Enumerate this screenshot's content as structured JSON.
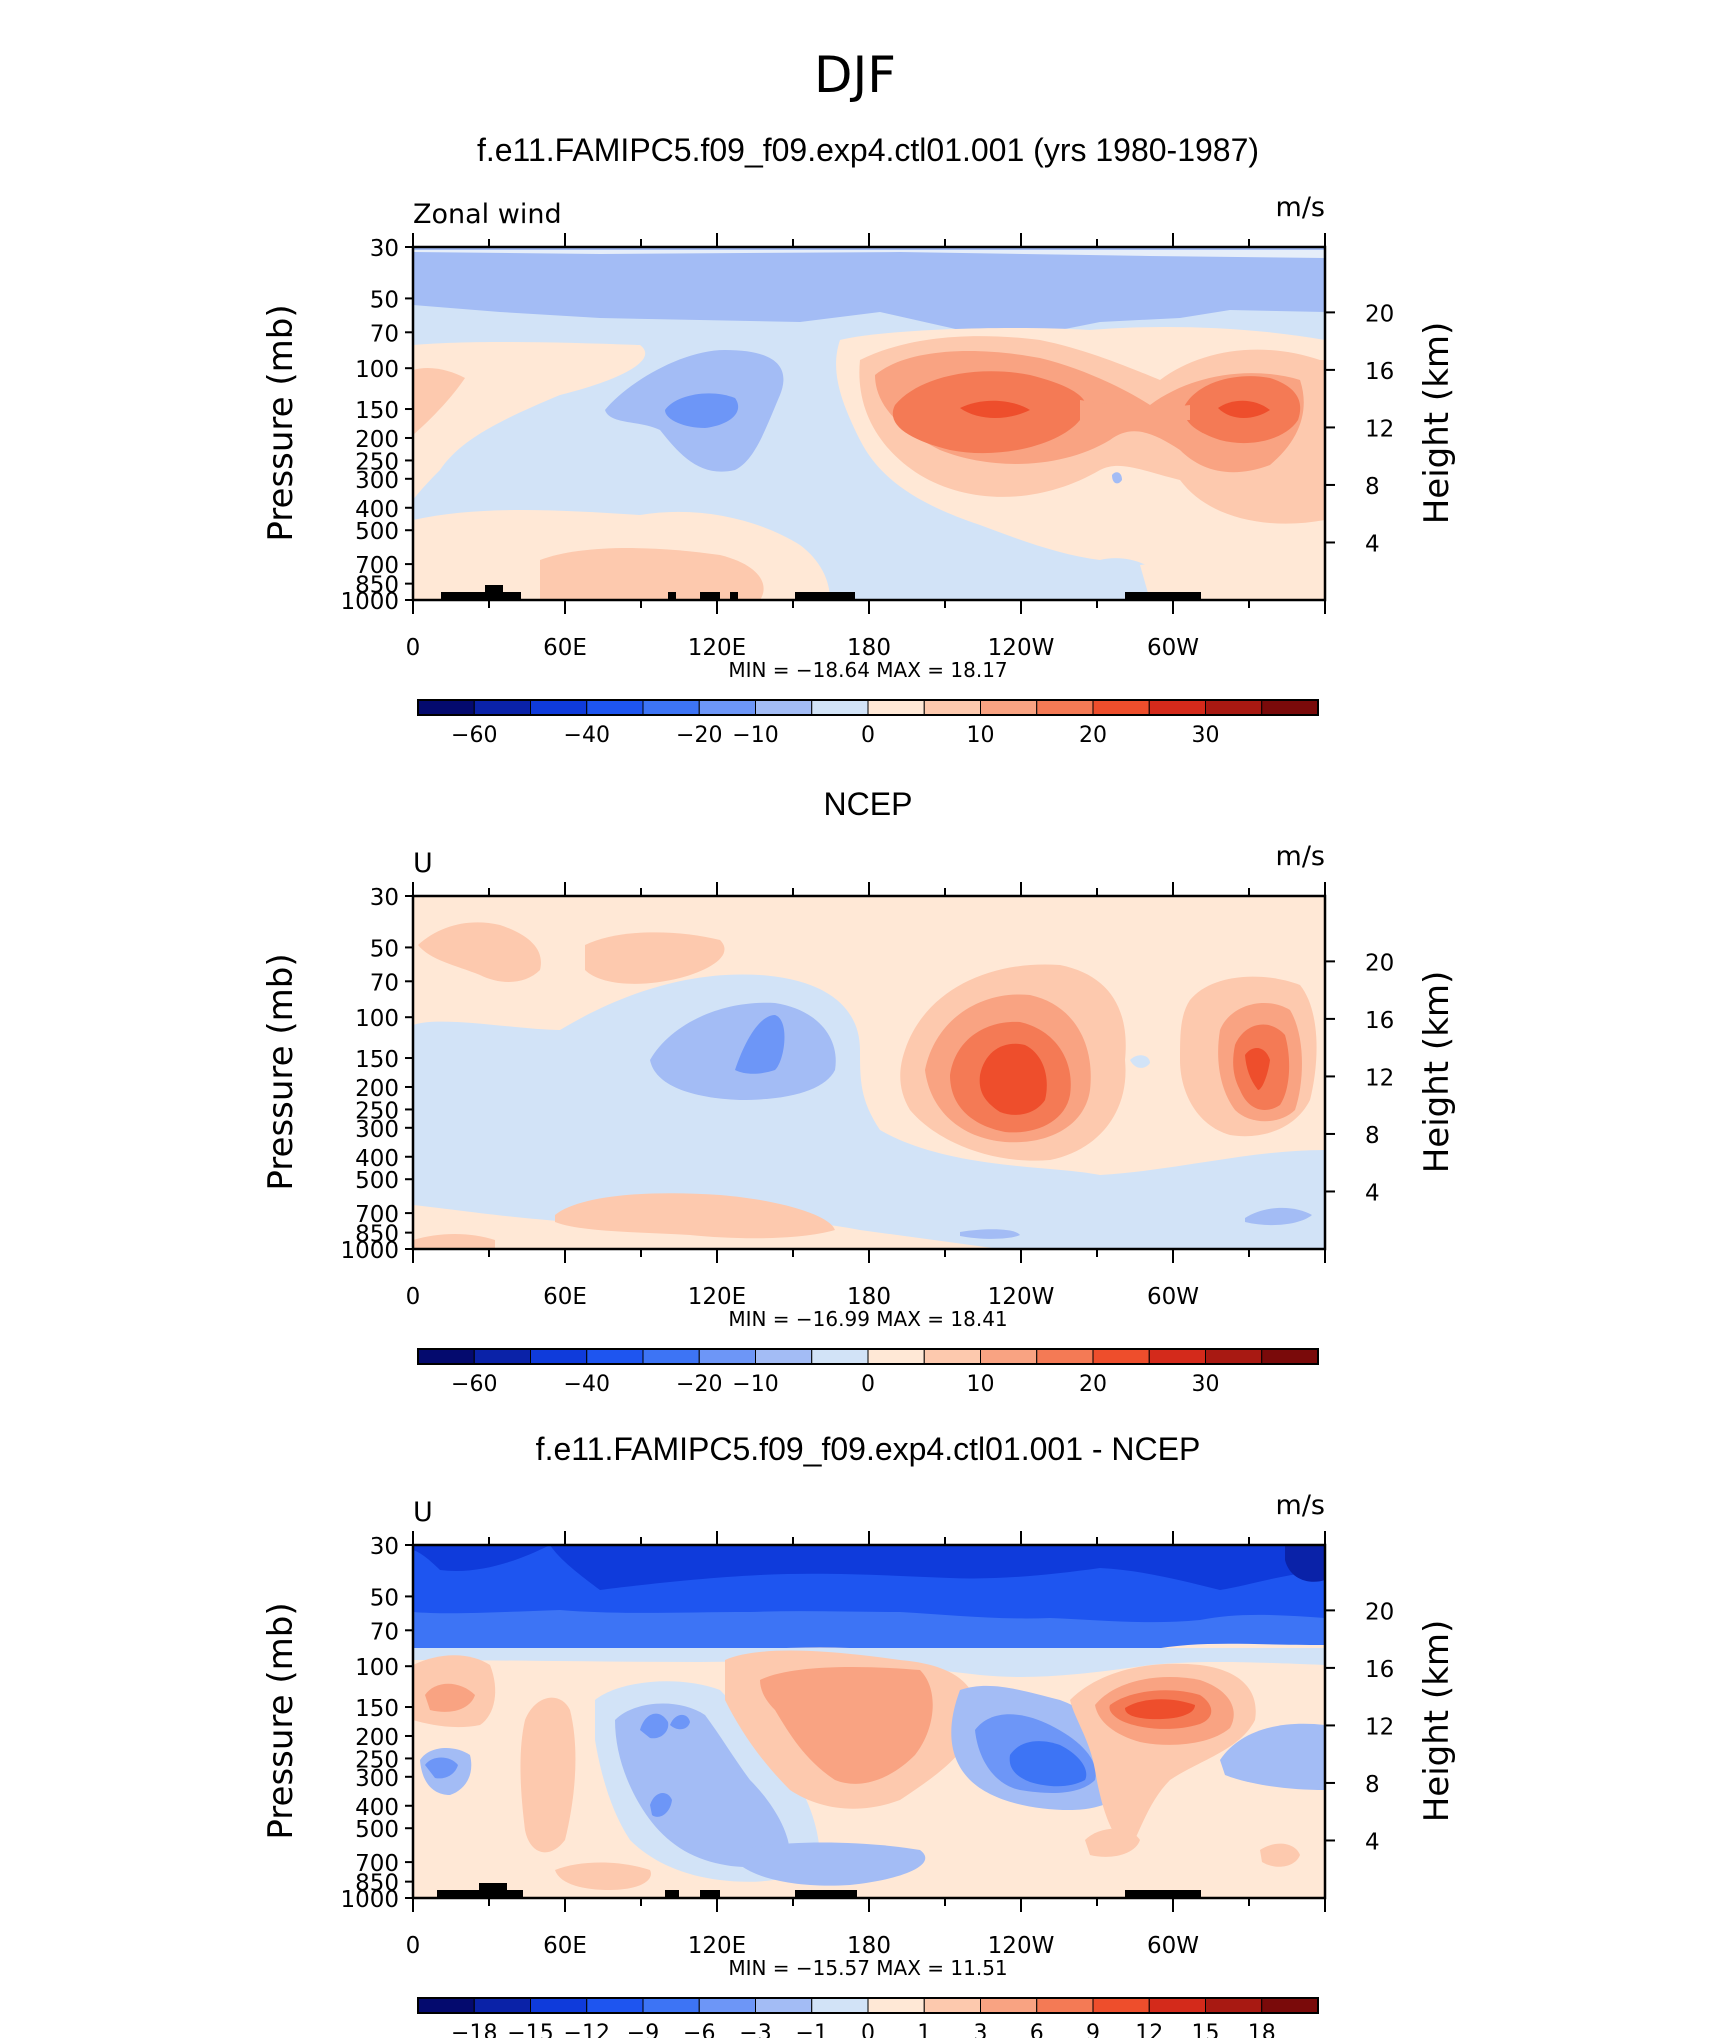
{
  "figure": {
    "title": "DJF"
  },
  "chart_data": [
    {
      "type": "heatmap",
      "title": "f.e11.FAMIPC5.f09_f09.exp4.ctl01.001 (yrs 1980-1987)",
      "left_label": "Zonal wind",
      "units": "m/s",
      "ylabel": "Pressure (mb)",
      "ylabel_right": "Height (km)",
      "y_ticks": [
        "30",
        "50",
        "70",
        "100",
        "150",
        "200",
        "250",
        "300",
        "400",
        "500",
        "700",
        "850",
        "1000"
      ],
      "height_ticks": [
        "20",
        "16",
        "12",
        "8",
        "4"
      ],
      "x_labels": [
        "0",
        "60E",
        "120E",
        "180",
        "120W",
        "60W"
      ],
      "stats": "MIN = −18.64   MAX =   18.17",
      "min": -18.64,
      "max": 18.17,
      "colorbar_labels": [
        "−60",
        "−40",
        "−20",
        "−10",
        "0",
        "10",
        "20",
        "30"
      ],
      "colorbar_colors": [
        "#040A6E",
        "#0A22A8",
        "#0F3BDB",
        "#1E55F0",
        "#3D74F5",
        "#6D96F7",
        "#A3BCF5",
        "#D2E3F7",
        "#FFE8D6",
        "#FDC9AE",
        "#F9A382",
        "#F47A55",
        "#EE4E2C",
        "#D42A1B",
        "#A81912",
        "#7A0A0A"
      ],
      "background_color": "#D2E3F7",
      "features": [
        {
          "label": "upper blue band",
          "lon": [
            0,
            360
          ],
          "p": [
            30,
            75
          ],
          "value": -12
        },
        {
          "label": "blue minimum 120E",
          "lon": [
            120,
            130
          ],
          "p": [
            140,
            150
          ],
          "value": -18.64
        },
        {
          "label": "jet core 120W",
          "lon": [
            105,
            125
          ],
          "p": [
            130,
            160
          ],
          "value": 18.17
        },
        {
          "label": "jet core 60W",
          "lon": [
            40,
            55
          ],
          "p": [
            130,
            160
          ],
          "value": 17
        },
        {
          "label": "weak westerly 20E",
          "lon": [
            0,
            30
          ],
          "p": [
            100,
            200
          ],
          "value": 3
        }
      ]
    },
    {
      "type": "heatmap",
      "title": "NCEP",
      "left_label": "U",
      "units": "m/s",
      "ylabel": "Pressure (mb)",
      "ylabel_right": "Height (km)",
      "y_ticks": [
        "30",
        "50",
        "70",
        "100",
        "150",
        "200",
        "250",
        "300",
        "400",
        "500",
        "700",
        "850",
        "1000"
      ],
      "height_ticks": [
        "20",
        "16",
        "12",
        "8",
        "4"
      ],
      "x_labels": [
        "0",
        "60E",
        "120E",
        "180",
        "120W",
        "60W"
      ],
      "stats": "MIN = −16.99   MAX =   18.41",
      "min": -16.99,
      "max": 18.41,
      "colorbar_labels": [
        "−60",
        "−40",
        "−20",
        "−10",
        "0",
        "10",
        "20",
        "30"
      ],
      "colorbar_colors": [
        "#040A6E",
        "#0A22A8",
        "#0F3BDB",
        "#1E55F0",
        "#3D74F5",
        "#6D96F7",
        "#A3BCF5",
        "#D2E3F7",
        "#FFE8D6",
        "#FDC9AE",
        "#F9A382",
        "#F47A55",
        "#EE4E2C",
        "#D42A1B",
        "#A81912",
        "#7A0A0A"
      ],
      "background_color": "#FFE8D6",
      "features": [
        {
          "label": "blue minimum 130E",
          "lon": [
            125,
            140
          ],
          "p": [
            120,
            160
          ],
          "value": -16.99
        },
        {
          "label": "jet core 130W",
          "lon": [
            120,
            140
          ],
          "p": [
            140,
            220
          ],
          "value": 18.41
        },
        {
          "label": "jet core 50W",
          "lon": [
            40,
            55
          ],
          "p": [
            130,
            200
          ],
          "value": 16
        }
      ]
    },
    {
      "type": "heatmap",
      "title": "f.e11.FAMIPC5.f09_f09.exp4.ctl01.001 - NCEP",
      "left_label": "U",
      "units": "m/s",
      "ylabel": "Pressure (mb)",
      "ylabel_right": "Height (km)",
      "y_ticks": [
        "30",
        "50",
        "70",
        "100",
        "150",
        "200",
        "250",
        "300",
        "400",
        "500",
        "700",
        "850",
        "1000"
      ],
      "height_ticks": [
        "20",
        "16",
        "12",
        "8",
        "4"
      ],
      "x_labels": [
        "0",
        "60E",
        "120E",
        "180",
        "120W",
        "60W"
      ],
      "stats": "MIN = −15.57   MAX =   11.51",
      "min": -15.57,
      "max": 11.51,
      "colorbar_labels": [
        "−18",
        "−15",
        "−12",
        "−9",
        "−6",
        "−3",
        "−1",
        "0",
        "1",
        "3",
        "6",
        "9",
        "12",
        "15",
        "18"
      ],
      "colorbar_colors": [
        "#040A6E",
        "#0A22A8",
        "#0F3BDB",
        "#1E55F0",
        "#3D74F5",
        "#6D96F7",
        "#A3BCF5",
        "#D2E3F7",
        "#FFE8D6",
        "#FDC9AE",
        "#F9A382",
        "#F47A55",
        "#EE4E2C",
        "#D42A1B",
        "#A81912",
        "#7A0A0A"
      ],
      "background_color": "#FFE8D6",
      "features": [
        {
          "label": "stratospheric negative band",
          "lon": [
            0,
            360
          ],
          "p": [
            30,
            70
          ],
          "value": -15
        },
        {
          "label": "positive 160E-180",
          "lon": [
            140,
            180
          ],
          "p": [
            110,
            300
          ],
          "value": 4
        },
        {
          "label": "negative 120W",
          "lon": [
            110,
            130
          ],
          "p": [
            200,
            400
          ],
          "value": -9
        },
        {
          "label": "positive maximum 60W",
          "lon": [
            55,
            70
          ],
          "p": [
            120,
            170
          ],
          "value": 11.51
        }
      ]
    }
  ]
}
